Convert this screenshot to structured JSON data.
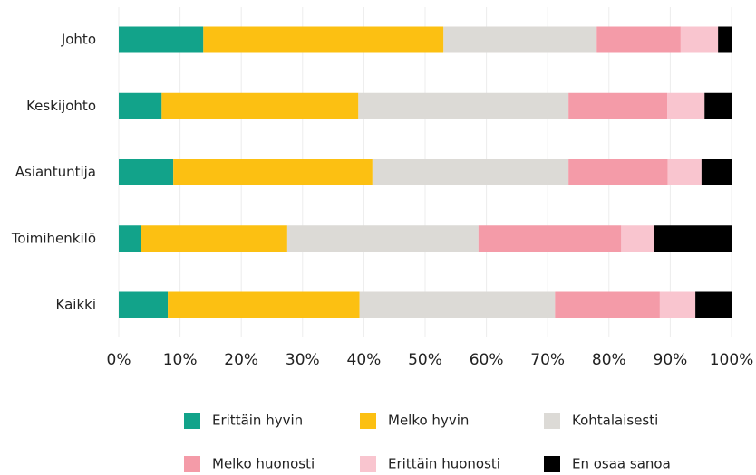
{
  "chart_data": {
    "type": "stacked-barh",
    "categories": [
      "Johto",
      "Keskijohto",
      "Asiantuntija",
      "Toimihenkilö",
      "Kaikki"
    ],
    "series": [
      {
        "name": "Erittäin hyvin",
        "color": "#12a38a",
        "values": [
          13.8,
          7.0,
          8.9,
          3.7,
          8.0
        ]
      },
      {
        "name": "Melko hyvin",
        "color": "#fcc012",
        "values": [
          39.2,
          32.1,
          32.5,
          23.8,
          31.3
        ]
      },
      {
        "name": "Kohtalaisesti",
        "color": "#dcdad6",
        "values": [
          25.0,
          34.3,
          32.0,
          31.2,
          31.9
        ]
      },
      {
        "name": "Melko huonosti",
        "color": "#f49ba8",
        "values": [
          13.7,
          16.1,
          16.2,
          23.3,
          17.1
        ]
      },
      {
        "name": "Erittäin huonosti",
        "color": "#f9c5cf",
        "values": [
          6.1,
          6.1,
          5.5,
          5.3,
          5.8
        ]
      },
      {
        "name": "En osaa sanoa",
        "color": "#000000",
        "values": [
          2.2,
          4.4,
          4.9,
          12.7,
          5.9
        ]
      }
    ],
    "xlim": [
      0,
      100
    ],
    "xticks": [
      {
        "value": 0,
        "label": "0%"
      },
      {
        "value": 10,
        "label": "10%"
      },
      {
        "value": 20,
        "label": "20%"
      },
      {
        "value": 30,
        "label": "30%"
      },
      {
        "value": 40,
        "label": "40%"
      },
      {
        "value": 50,
        "label": "50%"
      },
      {
        "value": 60,
        "label": "60%"
      },
      {
        "value": 70,
        "label": "70%"
      },
      {
        "value": 80,
        "label": "80%"
      },
      {
        "value": 90,
        "label": "90%"
      },
      {
        "value": 100,
        "label": "100%"
      }
    ],
    "grid": true,
    "legend": "bottom"
  }
}
